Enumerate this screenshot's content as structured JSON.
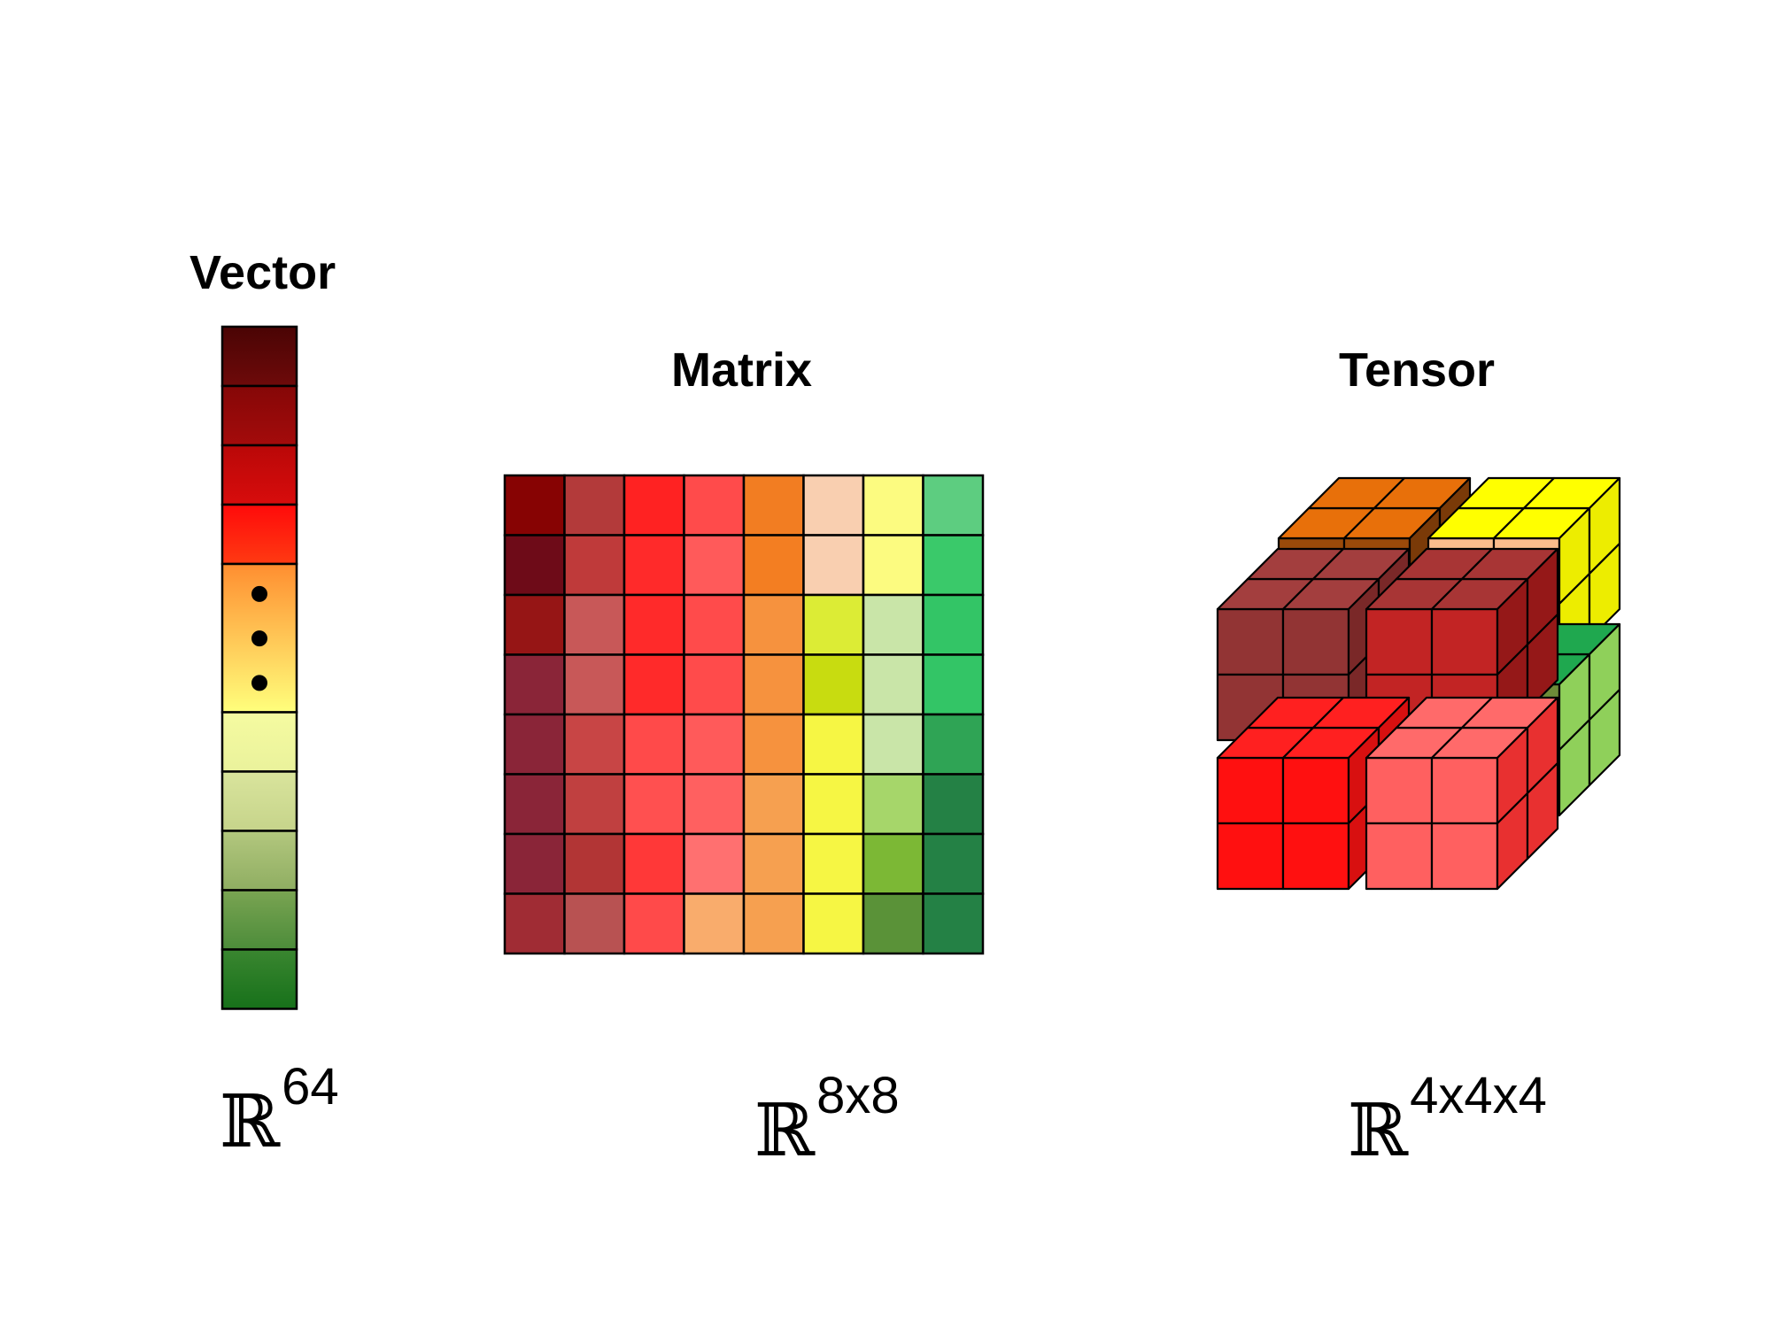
{
  "vector": {
    "title": "Vector",
    "space_symbol": "ℝ",
    "space_exponent": "64",
    "cells": [
      {
        "top": "#4a0404",
        "bottom": "#6e0a0a"
      },
      {
        "top": "#850707",
        "bottom": "#a40b0b"
      },
      {
        "top": "#b90808",
        "bottom": "#d80c0c"
      },
      {
        "top": "#ff0a0a",
        "bottom": "#ff3a12"
      },
      {
        "top": "#ff8e30",
        "bottom": "#ffff7c",
        "tall": true,
        "ellipsis": true
      },
      {
        "top": "#f5fba0",
        "bottom": "#eaf29c"
      },
      {
        "top": "#d9e49c",
        "bottom": "#c6d48b"
      },
      {
        "top": "#b3c77e",
        "bottom": "#8fae62"
      },
      {
        "top": "#7aa452",
        "bottom": "#4c8c3a"
      },
      {
        "top": "#3a8630",
        "bottom": "#17711a"
      }
    ]
  },
  "matrix": {
    "title": "Matrix",
    "space_symbol": "ℝ",
    "space_exponent": "8x8",
    "cells": [
      [
        "#870303",
        "#b33a3a",
        "#ff2222",
        "#ff4b4b",
        "#f27d22",
        "#f9cfb0",
        "#fcfb80",
        "#5dcd80"
      ],
      [
        "#6e0b18",
        "#bf3a3a",
        "#ff2a2a",
        "#ff5a5a",
        "#f37e22",
        "#f9cfb0",
        "#fcfb80",
        "#3ac96a"
      ],
      [
        "#961515",
        "#c85858",
        "#ff2a2a",
        "#ff4b4b",
        "#f6923e",
        "#dcec35",
        "#c9e5a8",
        "#33c566"
      ],
      [
        "#8a2538",
        "#c85858",
        "#ff2a2a",
        "#ff4b4b",
        "#f6923e",
        "#c8dc10",
        "#c9e5a8",
        "#33c566"
      ],
      [
        "#8a2538",
        "#c84545",
        "#ff4a4a",
        "#ff5a5a",
        "#f6923e",
        "#f6f644",
        "#c9e5a8",
        "#2fa455"
      ],
      [
        "#8a2538",
        "#c04040",
        "#ff5050",
        "#ff6060",
        "#f6a050",
        "#f6f644",
        "#a6d66a",
        "#248145"
      ],
      [
        "#8a2538",
        "#b23535",
        "#ff3838",
        "#ff7070",
        "#f6a050",
        "#f6f644",
        "#7cb835",
        "#248145"
      ],
      [
        "#a02c34",
        "#b85252",
        "#ff4a4a",
        "#f9ac6c",
        "#f6a050",
        "#f6f644",
        "#5a9238",
        "#248145"
      ]
    ]
  },
  "tensor": {
    "title": "Tensor",
    "space_symbol": "ℝ",
    "space_exponent": "4x4x4",
    "blocks": [
      {
        "name": "back-top-left",
        "front": "#9a4a0a",
        "top": "#e8700a",
        "side": "#7a3a08"
      },
      {
        "name": "back-top-right",
        "front": "#fabc8c",
        "top": "#ffff00",
        "side": "#eded00"
      },
      {
        "name": "back-bottom-right",
        "front": "#6e8c38",
        "top": "#1fa84f",
        "side": "#8fd05a"
      },
      {
        "name": "front-top-left",
        "front": "#923434",
        "top": "#a33e3e",
        "side": "#7a2828"
      },
      {
        "name": "front-top-right",
        "front": "#c22424",
        "top": "#a83535",
        "side": "#951818"
      },
      {
        "name": "front-bottom-left",
        "front": "#ff1010",
        "top": "#ff2020",
        "side": "#d81010"
      },
      {
        "name": "front-bottom-right",
        "front": "#ff6060",
        "top": "#ff6a6a",
        "side": "#e83030"
      }
    ]
  }
}
